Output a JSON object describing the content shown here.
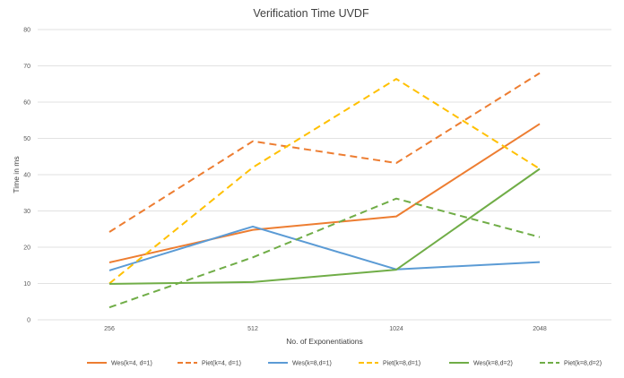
{
  "chart_data": {
    "type": "line",
    "title": "Verification Time UVDF",
    "xlabel": "No. of Exponentiations",
    "ylabel": "Time in ms",
    "categories": [
      "256",
      "512",
      "1024",
      "2048"
    ],
    "ylim": [
      0,
      80
    ],
    "yticks": [
      0,
      10,
      20,
      30,
      40,
      50,
      60,
      70,
      80
    ],
    "grid": true,
    "legend_position": "bottom",
    "series": [
      {
        "name": "Wes(k=4, d=1)",
        "values": [
          15.8,
          24.8,
          28.5,
          54.0
        ],
        "color": "#ED7D31",
        "dash": "solid"
      },
      {
        "name": "Piet(k=4, d=1)",
        "values": [
          24.2,
          49.2,
          43.2,
          68.0
        ],
        "color": "#ED7D31",
        "dash": "dashed"
      },
      {
        "name": "Wes(k=8,d=1)",
        "values": [
          13.6,
          25.7,
          13.9,
          15.9
        ],
        "color": "#5B9BD5",
        "dash": "solid"
      },
      {
        "name": "Piet(k=8,d=1)",
        "values": [
          10.0,
          42.0,
          66.4,
          41.6
        ],
        "color": "#FFC000",
        "dash": "dashed"
      },
      {
        "name": "Wes(k=8,d=2)",
        "values": [
          9.9,
          10.4,
          13.8,
          41.6
        ],
        "color": "#70AD47",
        "dash": "solid"
      },
      {
        "name": "Piet(k=8,d=2)",
        "values": [
          3.4,
          17.2,
          33.4,
          22.8
        ],
        "color": "#70AD47",
        "dash": "dashed"
      }
    ]
  }
}
